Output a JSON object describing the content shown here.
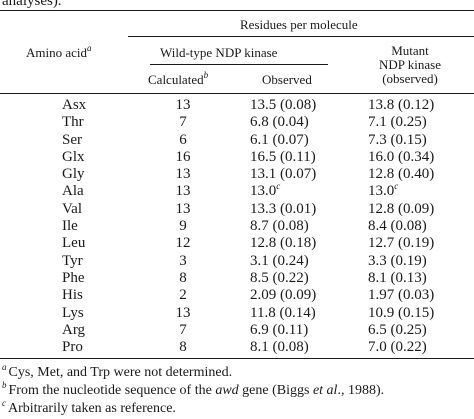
{
  "caption_tail": "analyses).",
  "header": {
    "amino_acid": "Amino acid",
    "amino_acid_mark": "a",
    "residues_per_molecule": "Residues per molecule",
    "wild_type": "Wild-type NDP kinase",
    "calculated": "Calculated",
    "calculated_mark": "b",
    "observed": "Observed",
    "mutant_line1": "Mutant",
    "mutant_line2": "NDP kinase",
    "mutant_line3": "(observed)"
  },
  "rows": [
    {
      "aa": "Asx",
      "calc": "13",
      "obs": "13.5 (0.08)",
      "obs_mark": "",
      "mut": "13.8 (0.12)",
      "mut_mark": ""
    },
    {
      "aa": "Thr",
      "calc": "7",
      "obs": "6.8 (0.04)",
      "obs_mark": "",
      "mut": "7.1 (0.25)",
      "mut_mark": ""
    },
    {
      "aa": "Ser",
      "calc": "6",
      "obs": "6.1 (0.07)",
      "obs_mark": "",
      "mut": "7.3 (0.15)",
      "mut_mark": ""
    },
    {
      "aa": "Glx",
      "calc": "16",
      "obs": "16.5 (0.11)",
      "obs_mark": "",
      "mut": "16.0 (0.34)",
      "mut_mark": ""
    },
    {
      "aa": "Gly",
      "calc": "13",
      "obs": "13.1 (0.07)",
      "obs_mark": "",
      "mut": "12.8 (0.40)",
      "mut_mark": ""
    },
    {
      "aa": "Ala",
      "calc": "13",
      "obs": "13.0",
      "obs_mark": "c",
      "mut": "13.0",
      "mut_mark": "c"
    },
    {
      "aa": "Val",
      "calc": "13",
      "obs": "13.3 (0.01)",
      "obs_mark": "",
      "mut": "12.8 (0.09)",
      "mut_mark": ""
    },
    {
      "aa": "Ile",
      "calc": "9",
      "obs": "8.7 (0.08)",
      "obs_mark": "",
      "mut": "8.4 (0.08)",
      "mut_mark": ""
    },
    {
      "aa": "Leu",
      "calc": "12",
      "obs": "12.8 (0.18)",
      "obs_mark": "",
      "mut": "12.7 (0.19)",
      "mut_mark": ""
    },
    {
      "aa": "Tyr",
      "calc": "3",
      "obs": "3.1 (0.24)",
      "obs_mark": "",
      "mut": "3.3 (0.19)",
      "mut_mark": ""
    },
    {
      "aa": "Phe",
      "calc": "8",
      "obs": "8.5 (0.22)",
      "obs_mark": "",
      "mut": "8.1 (0.13)",
      "mut_mark": ""
    },
    {
      "aa": "His",
      "calc": "2",
      "obs": "2.09 (0.09)",
      "obs_mark": "",
      "mut": "1.97 (0.03)",
      "mut_mark": ""
    },
    {
      "aa": "Lys",
      "calc": "13",
      "obs": "11.8 (0.14)",
      "obs_mark": "",
      "mut": "10.9 (0.15)",
      "mut_mark": ""
    },
    {
      "aa": "Arg",
      "calc": "7",
      "obs": "6.9 (0.11)",
      "obs_mark": "",
      "mut": "6.5 (0.25)",
      "mut_mark": ""
    },
    {
      "aa": "Pro",
      "calc": "8",
      "obs": "8.1 (0.08)",
      "obs_mark": "",
      "mut": "7.0 (0.22)",
      "mut_mark": ""
    }
  ],
  "footnotes": {
    "a_mark": "a",
    "a_text": "Cys, Met, and Trp were not determined.",
    "b_mark": "b",
    "b_text_before": "From the nucleotide sequence of the ",
    "b_gene": "awd",
    "b_text_mid": " gene (Biggs ",
    "b_etal": "et al",
    "b_text_after": "., 1988).",
    "c_mark": "c",
    "c_text": "Arbitrarily taken as reference."
  }
}
